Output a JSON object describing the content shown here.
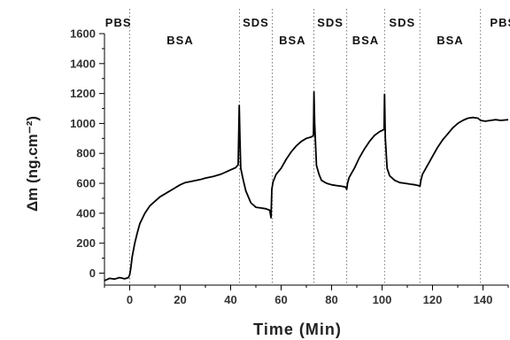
{
  "chart_data": {
    "type": "line",
    "xlabel": "Time (Min)",
    "ylabel": "Δm (ng.cm⁻²)",
    "xlim": [
      -10,
      150
    ],
    "ylim": [
      -80,
      1600
    ],
    "x_ticks": [
      0,
      20,
      40,
      60,
      80,
      100,
      120,
      140
    ],
    "y_ticks": [
      0,
      200,
      400,
      600,
      800,
      1000,
      1200,
      1400,
      1600
    ],
    "grid": false,
    "phase_markers": [
      0,
      43.5,
      56.5,
      73,
      86,
      101,
      115,
      139
    ],
    "phase_labels": [
      {
        "text": "PBS",
        "x": -4.5
      },
      {
        "text": "BSA",
        "x": 20
      },
      {
        "text": "SDS",
        "x": 50
      },
      {
        "text": "BSA",
        "x": 64.5
      },
      {
        "text": "SDS",
        "x": 79.5
      },
      {
        "text": "BSA",
        "x": 93.5
      },
      {
        "text": "SDS",
        "x": 108
      },
      {
        "text": "BSA",
        "x": 127
      },
      {
        "text": "PBS",
        "x": 148
      }
    ],
    "series": [
      {
        "color": "#000000",
        "points": [
          [
            -10,
            -50
          ],
          [
            -8,
            -35
          ],
          [
            -6,
            -40
          ],
          [
            -4,
            -30
          ],
          [
            -2,
            -38
          ],
          [
            -0.5,
            -30
          ],
          [
            0,
            -10
          ],
          [
            0.5,
            40
          ],
          [
            1,
            110
          ],
          [
            2,
            200
          ],
          [
            3,
            270
          ],
          [
            4,
            330
          ],
          [
            6,
            400
          ],
          [
            8,
            450
          ],
          [
            10,
            480
          ],
          [
            12,
            510
          ],
          [
            15,
            540
          ],
          [
            18,
            570
          ],
          [
            20,
            590
          ],
          [
            22,
            605
          ],
          [
            25,
            615
          ],
          [
            28,
            625
          ],
          [
            30,
            635
          ],
          [
            33,
            645
          ],
          [
            36,
            660
          ],
          [
            38,
            675
          ],
          [
            40,
            690
          ],
          [
            42,
            705
          ],
          [
            43,
            725
          ],
          [
            43.4,
            1120
          ],
          [
            43.7,
            900
          ],
          [
            44,
            700
          ],
          [
            45,
            620
          ],
          [
            46,
            550
          ],
          [
            48,
            470
          ],
          [
            50,
            440
          ],
          [
            52,
            435
          ],
          [
            54,
            430
          ],
          [
            55.5,
            420
          ],
          [
            56,
            370
          ],
          [
            56.3,
            560
          ],
          [
            56.8,
            610
          ],
          [
            58,
            660
          ],
          [
            60,
            700
          ],
          [
            62,
            760
          ],
          [
            64,
            810
          ],
          [
            66,
            850
          ],
          [
            68,
            880
          ],
          [
            70,
            900
          ],
          [
            72,
            910
          ],
          [
            72.8,
            920
          ],
          [
            73,
            1210
          ],
          [
            73.3,
            1000
          ],
          [
            74,
            720
          ],
          [
            75,
            660
          ],
          [
            76,
            620
          ],
          [
            78,
            600
          ],
          [
            80,
            590
          ],
          [
            82,
            585
          ],
          [
            84,
            580
          ],
          [
            85.5,
            575
          ],
          [
            86,
            560
          ],
          [
            86.3,
            600
          ],
          [
            87,
            640
          ],
          [
            89,
            700
          ],
          [
            91,
            770
          ],
          [
            93,
            830
          ],
          [
            95,
            880
          ],
          [
            97,
            920
          ],
          [
            99,
            945
          ],
          [
            100.8,
            960
          ],
          [
            101,
            1195
          ],
          [
            101.3,
            900
          ],
          [
            102,
            700
          ],
          [
            103,
            650
          ],
          [
            105,
            620
          ],
          [
            107,
            605
          ],
          [
            109,
            600
          ],
          [
            111,
            595
          ],
          [
            113,
            590
          ],
          [
            114.5,
            585
          ],
          [
            115,
            580
          ],
          [
            115.4,
            620
          ],
          [
            116,
            660
          ],
          [
            118,
            720
          ],
          [
            120,
            780
          ],
          [
            122,
            840
          ],
          [
            124,
            890
          ],
          [
            126,
            930
          ],
          [
            128,
            970
          ],
          [
            130,
            1000
          ],
          [
            132,
            1020
          ],
          [
            134,
            1035
          ],
          [
            136,
            1040
          ],
          [
            138,
            1035
          ],
          [
            139,
            1020
          ],
          [
            141,
            1015
          ],
          [
            143,
            1020
          ],
          [
            145,
            1025
          ],
          [
            147,
            1020
          ],
          [
            150,
            1025
          ]
        ]
      }
    ]
  }
}
